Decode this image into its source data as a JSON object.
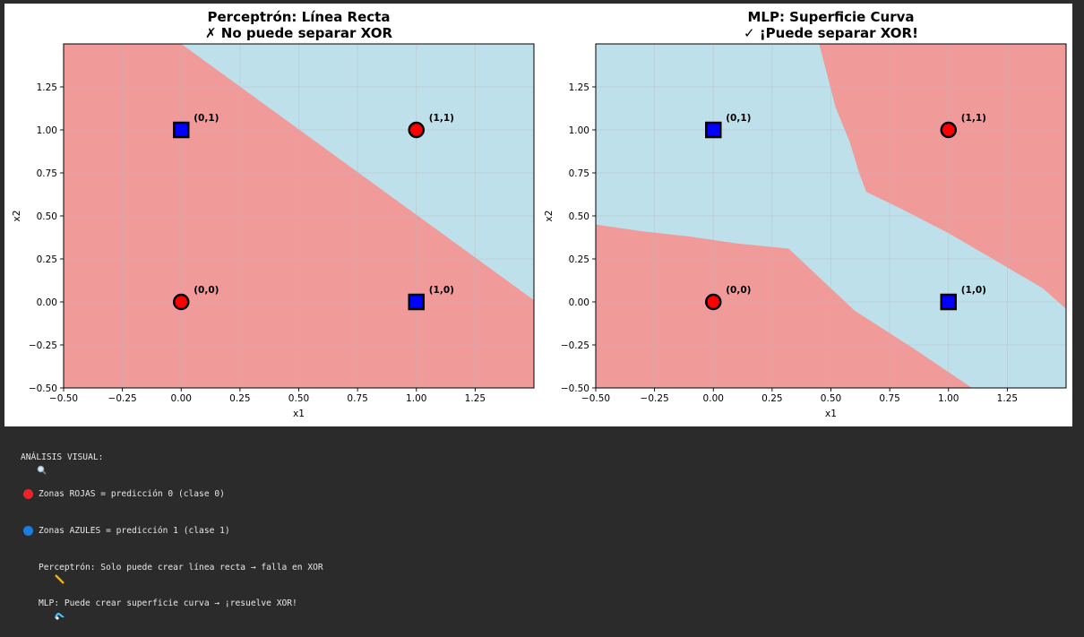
{
  "chart_data": [
    {
      "type": "scatter",
      "title_line1": "Perceptrón: Línea Recta",
      "title_line2": "✗ No puede separar XOR",
      "xlabel": "x1",
      "ylabel": "x2",
      "xlim": [
        -0.5,
        1.5
      ],
      "ylim": [
        -0.5,
        1.5
      ],
      "xticks": [
        -0.5,
        -0.25,
        0.0,
        0.25,
        0.5,
        0.75,
        1.0,
        1.25
      ],
      "yticks": [
        -0.5,
        -0.25,
        0.0,
        0.25,
        0.5,
        0.75,
        1.0,
        1.25
      ],
      "xtick_labels": [
        "−0.50",
        "−0.25",
        "0.00",
        "0.25",
        "0.50",
        "0.75",
        "1.00",
        "1.25"
      ],
      "ytick_labels": [
        "−0.50",
        "−0.25",
        "0.00",
        "0.25",
        "0.50",
        "0.75",
        "1.00",
        "1.25"
      ],
      "grid": true,
      "region_colors": {
        "class0": "#f19a9a",
        "class1": "#bde0ea"
      },
      "points": [
        {
          "x": 0,
          "y": 0,
          "label": "(0,0)",
          "class": 0,
          "marker": "circle",
          "color": "#ff0000"
        },
        {
          "x": 0,
          "y": 1,
          "label": "(0,1)",
          "class": 1,
          "marker": "square",
          "color": "#0000ff"
        },
        {
          "x": 1,
          "y": 0,
          "label": "(1,0)",
          "class": 1,
          "marker": "square",
          "color": "#0000ff"
        },
        {
          "x": 1,
          "y": 1,
          "label": "(1,1)",
          "class": 0,
          "marker": "circle",
          "color": "#ff0000"
        }
      ],
      "class1_region": [
        [
          0.0,
          1.5
        ],
        [
          1.5,
          1.5
        ],
        [
          1.5,
          0.01
        ]
      ]
    },
    {
      "type": "scatter",
      "title_line1": "MLP: Superficie Curva",
      "title_line2": "✓ ¡Puede separar XOR!",
      "xlabel": "x1",
      "ylabel": "x2",
      "xlim": [
        -0.5,
        1.5
      ],
      "ylim": [
        -0.5,
        1.5
      ],
      "xticks": [
        -0.5,
        -0.25,
        0.0,
        0.25,
        0.5,
        0.75,
        1.0,
        1.25
      ],
      "yticks": [
        -0.5,
        -0.25,
        0.0,
        0.25,
        0.5,
        0.75,
        1.0,
        1.25
      ],
      "xtick_labels": [
        "−0.50",
        "−0.25",
        "0.00",
        "0.25",
        "0.50",
        "0.75",
        "1.00",
        "1.25"
      ],
      "ytick_labels": [
        "−0.50",
        "−0.25",
        "0.00",
        "0.25",
        "0.50",
        "0.75",
        "1.00",
        "1.25"
      ],
      "grid": true,
      "region_colors": {
        "class0": "#f19a9a",
        "class1": "#bde0ea"
      },
      "points": [
        {
          "x": 0,
          "y": 0,
          "label": "(0,0)",
          "class": 0,
          "marker": "circle",
          "color": "#ff0000"
        },
        {
          "x": 0,
          "y": 1,
          "label": "(0,1)",
          "class": 1,
          "marker": "square",
          "color": "#0000ff"
        },
        {
          "x": 1,
          "y": 0,
          "label": "(1,0)",
          "class": 1,
          "marker": "square",
          "color": "#0000ff"
        },
        {
          "x": 1,
          "y": 1,
          "label": "(1,1)",
          "class": 0,
          "marker": "circle",
          "color": "#ff0000"
        }
      ],
      "class1_region": [
        [
          -0.5,
          1.5
        ],
        [
          0.45,
          1.5
        ],
        [
          0.52,
          1.13
        ],
        [
          0.58,
          0.93
        ],
        [
          0.62,
          0.75
        ],
        [
          0.65,
          0.64
        ],
        [
          0.8,
          0.54
        ],
        [
          1.0,
          0.4
        ],
        [
          1.2,
          0.24
        ],
        [
          1.4,
          0.08
        ],
        [
          1.5,
          -0.04
        ],
        [
          1.5,
          -0.5
        ],
        [
          1.1,
          -0.5
        ],
        [
          0.85,
          -0.27
        ],
        [
          0.6,
          -0.05
        ],
        [
          0.32,
          0.31
        ],
        [
          0.1,
          0.34
        ],
        [
          -0.1,
          0.38
        ],
        [
          -0.3,
          0.41
        ],
        [
          -0.5,
          0.45
        ]
      ]
    }
  ],
  "output": {
    "header": "ANÁLISIS VISUAL:",
    "line_red": "Zonas ROJAS = predicción 0 (clase 0)",
    "line_blue": "Zonas AZULES = predicción 1 (clase 1)",
    "line_perceptron": "Perceptrón: Solo puede crear línea recta → falla en XOR",
    "line_mlp": "MLP: Puede crear superficie curva → ¡resuelve XOR!"
  }
}
